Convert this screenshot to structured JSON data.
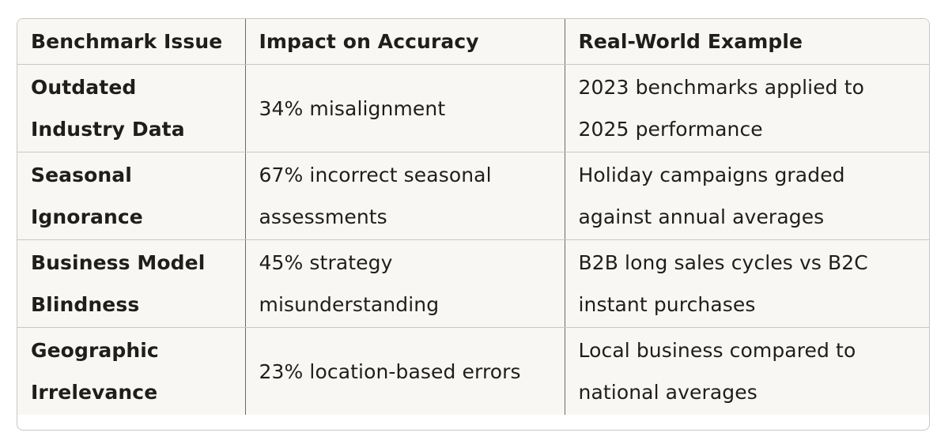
{
  "table": {
    "headers": [
      "Benchmark Issue",
      "Impact on Accuracy",
      "Real-World Example"
    ],
    "rows": [
      {
        "issue": "Outdated Industry Data",
        "impact": "34% misalignment",
        "example": "2023 benchmarks applied to 2025 performance"
      },
      {
        "issue": "Seasonal Ignorance",
        "impact": "67% incorrect seasonal assessments",
        "example": "Holiday campaigns graded against annual averages"
      },
      {
        "issue": "Business Model Blindness",
        "impact": "45% strategy misunderstanding",
        "example": "B2B long sales cycles vs B2C instant purchases"
      },
      {
        "issue": "Geographic Irrelevance",
        "impact": "23% location-based errors",
        "example": "Local business compared to national averages"
      }
    ]
  }
}
